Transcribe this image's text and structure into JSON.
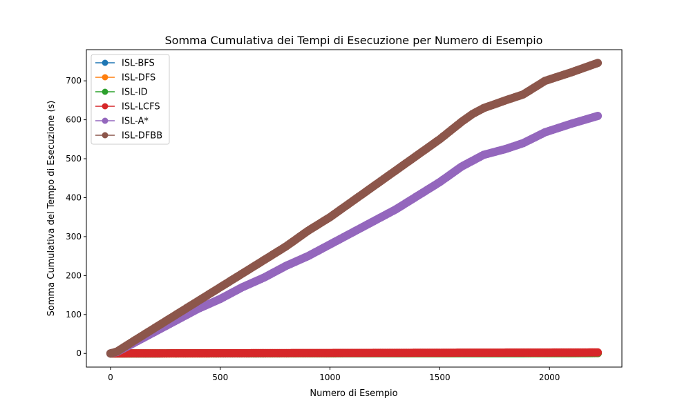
{
  "chart_data": {
    "type": "line",
    "title": "Somma Cumulativa dei Tempi di Esecuzione per Numero di Esempio",
    "xlabel": "Numero di Esempio",
    "ylabel": "Somma Cumulativa del Tempo di Esecuzione (s)",
    "xlim": [
      -110,
      2330
    ],
    "ylim": [
      -35,
      780
    ],
    "xticks": [
      0,
      500,
      1000,
      1500,
      2000
    ],
    "yticks": [
      0,
      100,
      200,
      300,
      400,
      500,
      600,
      700
    ],
    "legend_position": "top-left",
    "marker": "circle",
    "series": [
      {
        "name": "ISL-BFS",
        "color": "#1f77b4",
        "x": [
          0,
          500,
          1000,
          1500,
          2000,
          2220
        ],
        "y": [
          0,
          0.2,
          0.5,
          0.8,
          1.1,
          1.3
        ]
      },
      {
        "name": "ISL-DFS",
        "color": "#ff7f0e",
        "x": [
          0,
          500,
          1000,
          1500,
          2000,
          2220
        ],
        "y": [
          0,
          0.1,
          0.3,
          0.5,
          0.7,
          0.8
        ]
      },
      {
        "name": "ISL-ID",
        "color": "#2ca02c",
        "x": [
          0,
          500,
          1000,
          1500,
          2000,
          2220
        ],
        "y": [
          0,
          0.2,
          0.4,
          0.6,
          0.8,
          1.0
        ]
      },
      {
        "name": "ISL-LCFS",
        "color": "#d62728",
        "x": [
          0,
          500,
          1000,
          1500,
          2000,
          2220
        ],
        "y": [
          0,
          0.6,
          1.2,
          1.8,
          2.3,
          2.6
        ]
      },
      {
        "name": "ISL-A*",
        "color": "#9467bd",
        "x": [
          0,
          30,
          100,
          200,
          300,
          400,
          500,
          600,
          700,
          800,
          900,
          1000,
          1100,
          1200,
          1300,
          1400,
          1500,
          1600,
          1650,
          1700,
          1800,
          1880,
          1980,
          2100,
          2220
        ],
        "y": [
          0,
          4,
          25,
          55,
          85,
          115,
          140,
          170,
          195,
          225,
          250,
          280,
          310,
          340,
          370,
          405,
          440,
          480,
          495,
          510,
          525,
          540,
          568,
          590,
          610
        ]
      },
      {
        "name": "ISL-DFBB",
        "color": "#8c564b",
        "x": [
          0,
          30,
          100,
          200,
          300,
          400,
          500,
          600,
          700,
          800,
          900,
          1000,
          1100,
          1200,
          1300,
          1400,
          1500,
          1600,
          1650,
          1700,
          1800,
          1880,
          1980,
          2100,
          2220
        ],
        "y": [
          0,
          5,
          30,
          65,
          100,
          135,
          170,
          205,
          240,
          275,
          315,
          350,
          390,
          430,
          470,
          510,
          550,
          595,
          615,
          630,
          650,
          665,
          700,
          722,
          746
        ]
      }
    ]
  }
}
